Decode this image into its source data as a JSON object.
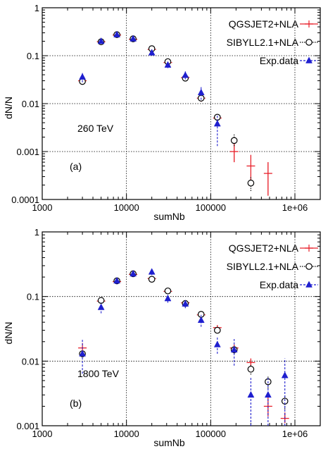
{
  "chart_data": [
    {
      "type": "scatter",
      "xlabel": "sumNb",
      "ylabel": "dN/N",
      "xscale": "log",
      "yscale": "log",
      "xlim": [
        1000,
        2000000
      ],
      "ylim": [
        0.0001,
        1
      ],
      "xticks": [
        "1000",
        "10000",
        "100000",
        "1e+06"
      ],
      "yticks": [
        "0.0001",
        "0.001",
        "0.01",
        "0.1",
        "1"
      ],
      "grid": true,
      "legend_position": "top-right",
      "annotations": [
        "260 TeV",
        "(a)"
      ],
      "series": [
        {
          "name": "QGSJET2+NLA",
          "color": "#e8202a",
          "marker": "cross",
          "points": [
            {
              "x": 3000,
              "y": 0.03,
              "ylo": 0.027,
              "yhi": 0.033
            },
            {
              "x": 5000,
              "y": 0.195,
              "ylo": 0.185,
              "yhi": 0.205
            },
            {
              "x": 7700,
              "y": 0.27,
              "ylo": 0.26,
              "yhi": 0.28
            },
            {
              "x": 12000,
              "y": 0.22,
              "ylo": 0.21,
              "yhi": 0.23
            },
            {
              "x": 20000,
              "y": 0.135,
              "ylo": 0.125,
              "yhi": 0.145
            },
            {
              "x": 31000,
              "y": 0.072,
              "ylo": 0.066,
              "yhi": 0.078
            },
            {
              "x": 50000,
              "y": 0.035,
              "ylo": 0.031,
              "yhi": 0.039
            },
            {
              "x": 77000,
              "y": 0.013,
              "ylo": 0.011,
              "yhi": 0.015
            },
            {
              "x": 120000,
              "y": 0.005,
              "ylo": 0.004,
              "yhi": 0.006
            },
            {
              "x": 190000,
              "y": 0.001,
              "ylo": 0.0006,
              "yhi": 0.0016
            },
            {
              "x": 300000,
              "y": 0.0005,
              "ylo": 0.00025,
              "yhi": 0.00085
            },
            {
              "x": 480000,
              "y": 0.00035,
              "ylo": 0.00012,
              "yhi": 0.0006
            }
          ]
        },
        {
          "name": "SIBYLL2.1+NLA",
          "color": "#000000",
          "marker": "open-circle",
          "points": [
            {
              "x": 3000,
              "y": 0.029,
              "ylo": 0.027,
              "yhi": 0.031
            },
            {
              "x": 5000,
              "y": 0.195,
              "ylo": 0.185,
              "yhi": 0.205
            },
            {
              "x": 7700,
              "y": 0.275,
              "ylo": 0.265,
              "yhi": 0.285
            },
            {
              "x": 12000,
              "y": 0.225,
              "ylo": 0.215,
              "yhi": 0.235
            },
            {
              "x": 20000,
              "y": 0.14,
              "ylo": 0.13,
              "yhi": 0.15
            },
            {
              "x": 31000,
              "y": 0.075,
              "ylo": 0.069,
              "yhi": 0.081
            },
            {
              "x": 50000,
              "y": 0.034,
              "ylo": 0.031,
              "yhi": 0.037
            },
            {
              "x": 77000,
              "y": 0.013,
              "ylo": 0.011,
              "yhi": 0.015
            },
            {
              "x": 120000,
              "y": 0.0052,
              "ylo": 0.0045,
              "yhi": 0.006
            },
            {
              "x": 190000,
              "y": 0.0017,
              "ylo": 0.0013,
              "yhi": 0.0023
            },
            {
              "x": 300000,
              "y": 0.00022,
              "ylo": 0.00015,
              "yhi": 0.0003
            }
          ]
        },
        {
          "name": "Exp.data",
          "color": "#1f1fcf",
          "marker": "filled-triangle",
          "points": [
            {
              "x": 3000,
              "y": 0.036,
              "ylo": 0.028,
              "yhi": 0.045
            },
            {
              "x": 5000,
              "y": 0.2,
              "ylo": 0.18,
              "yhi": 0.22
            },
            {
              "x": 7700,
              "y": 0.275,
              "ylo": 0.255,
              "yhi": 0.295
            },
            {
              "x": 12000,
              "y": 0.225,
              "ylo": 0.205,
              "yhi": 0.245
            },
            {
              "x": 20000,
              "y": 0.115,
              "ylo": 0.1,
              "yhi": 0.13
            },
            {
              "x": 31000,
              "y": 0.064,
              "ylo": 0.055,
              "yhi": 0.074
            },
            {
              "x": 50000,
              "y": 0.039,
              "ylo": 0.032,
              "yhi": 0.047
            },
            {
              "x": 77000,
              "y": 0.017,
              "ylo": 0.012,
              "yhi": 0.023
            },
            {
              "x": 120000,
              "y": 0.0038,
              "ylo": 0.0013,
              "yhi": 0.006
            }
          ]
        }
      ]
    },
    {
      "type": "scatter",
      "xlabel": "sumNb",
      "ylabel": "dN/N",
      "xscale": "log",
      "yscale": "log",
      "xlim": [
        1000,
        2000000
      ],
      "ylim": [
        0.001,
        1
      ],
      "xticks": [
        "1000",
        "10000",
        "100000",
        "1e+06"
      ],
      "yticks": [
        "0.001",
        "0.01",
        "0.1",
        "1"
      ],
      "grid": true,
      "legend_position": "top-right",
      "annotations": [
        "1800 TeV",
        "(b)"
      ],
      "series": [
        {
          "name": "QGSJET2+NLA",
          "color": "#e8202a",
          "marker": "cross",
          "points": [
            {
              "x": 3000,
              "y": 0.016,
              "ylo": 0.013,
              "yhi": 0.019
            },
            {
              "x": 5000,
              "y": 0.085,
              "ylo": 0.079,
              "yhi": 0.091
            },
            {
              "x": 7700,
              "y": 0.17,
              "ylo": 0.16,
              "yhi": 0.18
            },
            {
              "x": 12000,
              "y": 0.22,
              "ylo": 0.21,
              "yhi": 0.23
            },
            {
              "x": 20000,
              "y": 0.19,
              "ylo": 0.18,
              "yhi": 0.2
            },
            {
              "x": 31000,
              "y": 0.12,
              "ylo": 0.113,
              "yhi": 0.127
            },
            {
              "x": 50000,
              "y": 0.08,
              "ylo": 0.075,
              "yhi": 0.085
            },
            {
              "x": 77000,
              "y": 0.052,
              "ylo": 0.048,
              "yhi": 0.056
            },
            {
              "x": 120000,
              "y": 0.033,
              "ylo": 0.03,
              "yhi": 0.036
            },
            {
              "x": 190000,
              "y": 0.016,
              "ylo": 0.014,
              "yhi": 0.018
            },
            {
              "x": 300000,
              "y": 0.0095,
              "ylo": 0.008,
              "yhi": 0.011
            },
            {
              "x": 480000,
              "y": 0.002,
              "ylo": 0.0014,
              "yhi": 0.0028
            },
            {
              "x": 760000,
              "y": 0.0013,
              "ylo": 0.0011,
              "yhi": 0.0016
            }
          ]
        },
        {
          "name": "SIBYLL2.1+NLA",
          "color": "#000000",
          "marker": "open-circle",
          "points": [
            {
              "x": 3000,
              "y": 0.013,
              "ylo": 0.012,
              "yhi": 0.014
            },
            {
              "x": 5000,
              "y": 0.087,
              "ylo": 0.082,
              "yhi": 0.092
            },
            {
              "x": 7700,
              "y": 0.175,
              "ylo": 0.165,
              "yhi": 0.185
            },
            {
              "x": 12000,
              "y": 0.225,
              "ylo": 0.215,
              "yhi": 0.235
            },
            {
              "x": 20000,
              "y": 0.185,
              "ylo": 0.175,
              "yhi": 0.195
            },
            {
              "x": 31000,
              "y": 0.122,
              "ylo": 0.115,
              "yhi": 0.129
            },
            {
              "x": 50000,
              "y": 0.078,
              "ylo": 0.073,
              "yhi": 0.083
            },
            {
              "x": 77000,
              "y": 0.053,
              "ylo": 0.049,
              "yhi": 0.057
            },
            {
              "x": 120000,
              "y": 0.03,
              "ylo": 0.027,
              "yhi": 0.033
            },
            {
              "x": 190000,
              "y": 0.015,
              "ylo": 0.013,
              "yhi": 0.017
            },
            {
              "x": 300000,
              "y": 0.0075,
              "ylo": 0.0062,
              "yhi": 0.0089
            },
            {
              "x": 480000,
              "y": 0.0048,
              "ylo": 0.0038,
              "yhi": 0.0058
            },
            {
              "x": 760000,
              "y": 0.0024,
              "ylo": 0.0018,
              "yhi": 0.003
            }
          ]
        },
        {
          "name": "Exp.data",
          "color": "#1f1fcf",
          "marker": "filled-triangle",
          "points": [
            {
              "x": 3000,
              "y": 0.013,
              "ylo": 0.0064,
              "yhi": 0.022
            },
            {
              "x": 5000,
              "y": 0.068,
              "ylo": 0.055,
              "yhi": 0.081
            },
            {
              "x": 7700,
              "y": 0.175,
              "ylo": 0.155,
              "yhi": 0.195
            },
            {
              "x": 12000,
              "y": 0.225,
              "ylo": 0.2,
              "yhi": 0.25
            },
            {
              "x": 20000,
              "y": 0.24,
              "ylo": 0.215,
              "yhi": 0.265
            },
            {
              "x": 31000,
              "y": 0.093,
              "ylo": 0.08,
              "yhi": 0.106
            },
            {
              "x": 50000,
              "y": 0.077,
              "ylo": 0.066,
              "yhi": 0.088
            },
            {
              "x": 77000,
              "y": 0.043,
              "ylo": 0.034,
              "yhi": 0.052
            },
            {
              "x": 120000,
              "y": 0.018,
              "ylo": 0.013,
              "yhi": 0.024
            },
            {
              "x": 190000,
              "y": 0.015,
              "ylo": 0.0085,
              "yhi": 0.022
            },
            {
              "x": 300000,
              "y": 0.003,
              "ylo": 0.001,
              "yhi": 0.0055
            },
            {
              "x": 480000,
              "y": 0.003,
              "ylo": 0.001,
              "yhi": 0.0055
            },
            {
              "x": 760000,
              "y": 0.006,
              "ylo": 0.001,
              "yhi": 0.011
            }
          ]
        }
      ]
    }
  ]
}
